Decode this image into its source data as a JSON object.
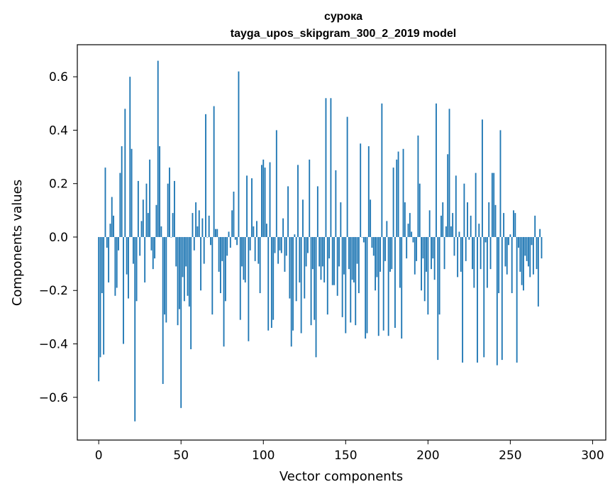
{
  "chart_data": {
    "type": "bar",
    "title": "сурока",
    "subtitle": "tayga_upos_skipgram_300_2_2019 model",
    "xlabel": "Vector components",
    "ylabel": "Components values",
    "xlim": [
      -13,
      308
    ],
    "ylim": [
      -0.76,
      0.72
    ],
    "xticks": [
      0,
      50,
      100,
      150,
      200,
      250,
      300
    ],
    "yticks": [
      -0.6,
      -0.4,
      -0.2,
      0.0,
      0.2,
      0.4,
      0.6
    ],
    "ytick_labels": [
      "−0.6",
      "−0.4",
      "−0.2",
      "0.0",
      "0.2",
      "0.4",
      "0.6"
    ],
    "color": "#1f77b4",
    "values": [
      -0.54,
      -0.45,
      -0.21,
      -0.44,
      0.26,
      -0.04,
      -0.17,
      0.05,
      0.15,
      0.08,
      -0.22,
      -0.19,
      -0.05,
      0.24,
      0.34,
      -0.4,
      0.48,
      -0.14,
      -0.23,
      0.6,
      0.33,
      -0.1,
      -0.69,
      -0.24,
      0.21,
      -0.07,
      0.06,
      0.14,
      -0.17,
      0.2,
      0.09,
      0.29,
      -0.05,
      -0.12,
      -0.08,
      0.12,
      0.66,
      0.34,
      0.04,
      -0.55,
      -0.29,
      -0.32,
      0.2,
      0.26,
      0.0,
      0.09,
      0.21,
      -0.11,
      -0.33,
      -0.27,
      -0.64,
      -0.15,
      -0.24,
      -0.11,
      -0.22,
      -0.26,
      -0.42,
      0.09,
      -0.05,
      0.13,
      0.04,
      0.1,
      -0.2,
      0.07,
      -0.1,
      0.46,
      0.0,
      0.08,
      -0.03,
      -0.29,
      0.49,
      0.03,
      0.03,
      -0.13,
      -0.21,
      -0.09,
      -0.41,
      -0.24,
      -0.07,
      0.02,
      -0.04,
      0.1,
      0.17,
      -0.01,
      -0.03,
      0.62,
      -0.31,
      -0.11,
      -0.16,
      -0.17,
      0.23,
      -0.39,
      -0.05,
      0.22,
      0.04,
      -0.09,
      0.06,
      -0.1,
      -0.21,
      0.27,
      0.29,
      0.26,
      0.05,
      -0.35,
      0.28,
      -0.34,
      -0.31,
      -0.06,
      0.4,
      -0.1,
      -0.05,
      -0.06,
      0.07,
      -0.13,
      -0.07,
      0.19,
      -0.23,
      -0.41,
      -0.35,
      0.01,
      -0.24,
      0.27,
      -0.17,
      -0.36,
      0.14,
      -0.23,
      -0.11,
      -0.06,
      0.29,
      -0.33,
      -0.12,
      -0.31,
      -0.45,
      0.19,
      -0.11,
      -0.16,
      -0.11,
      -0.17,
      0.52,
      -0.29,
      -0.08,
      0.52,
      -0.18,
      -0.18,
      0.25,
      -0.22,
      -0.11,
      0.13,
      -0.3,
      -0.14,
      -0.36,
      0.45,
      -0.12,
      -0.32,
      -0.16,
      -0.17,
      -0.33,
      -0.1,
      -0.21,
      0.35,
      0.0,
      -0.02,
      -0.38,
      -0.36,
      0.34,
      0.14,
      -0.04,
      -0.07,
      -0.2,
      -0.15,
      -0.37,
      -0.13,
      0.5,
      -0.35,
      -0.09,
      0.06,
      -0.37,
      -0.13,
      -0.12,
      0.26,
      -0.34,
      0.29,
      0.32,
      -0.19,
      -0.38,
      0.33,
      0.13,
      -0.08,
      0.05,
      0.09,
      0.02,
      -0.02,
      -0.14,
      -0.09,
      0.38,
      0.2,
      -0.2,
      -0.08,
      -0.24,
      -0.13,
      -0.29,
      0.1,
      -0.12,
      -0.08,
      -0.16,
      0.5,
      -0.46,
      -0.29,
      0.08,
      0.13,
      -0.12,
      0.04,
      0.31,
      0.48,
      0.04,
      0.09,
      -0.07,
      0.23,
      -0.15,
      0.02,
      -0.13,
      -0.47,
      0.2,
      -0.09,
      0.13,
      -0.01,
      0.08,
      -0.12,
      -0.19,
      0.24,
      -0.47,
      0.05,
      -0.12,
      0.44,
      -0.45,
      -0.02,
      -0.19,
      0.13,
      -0.12,
      0.24,
      0.24,
      0.12,
      -0.48,
      -0.21,
      0.4,
      -0.46,
      0.09,
      -0.11,
      -0.14,
      -0.03,
      0.01,
      -0.21,
      0.1,
      0.09,
      -0.47,
      -0.04,
      -0.13,
      -0.18,
      -0.2,
      -0.07,
      -0.09,
      -0.11,
      -0.15,
      -0.03,
      -0.14,
      0.08,
      -0.12,
      -0.26,
      0.03,
      -0.08
    ]
  }
}
